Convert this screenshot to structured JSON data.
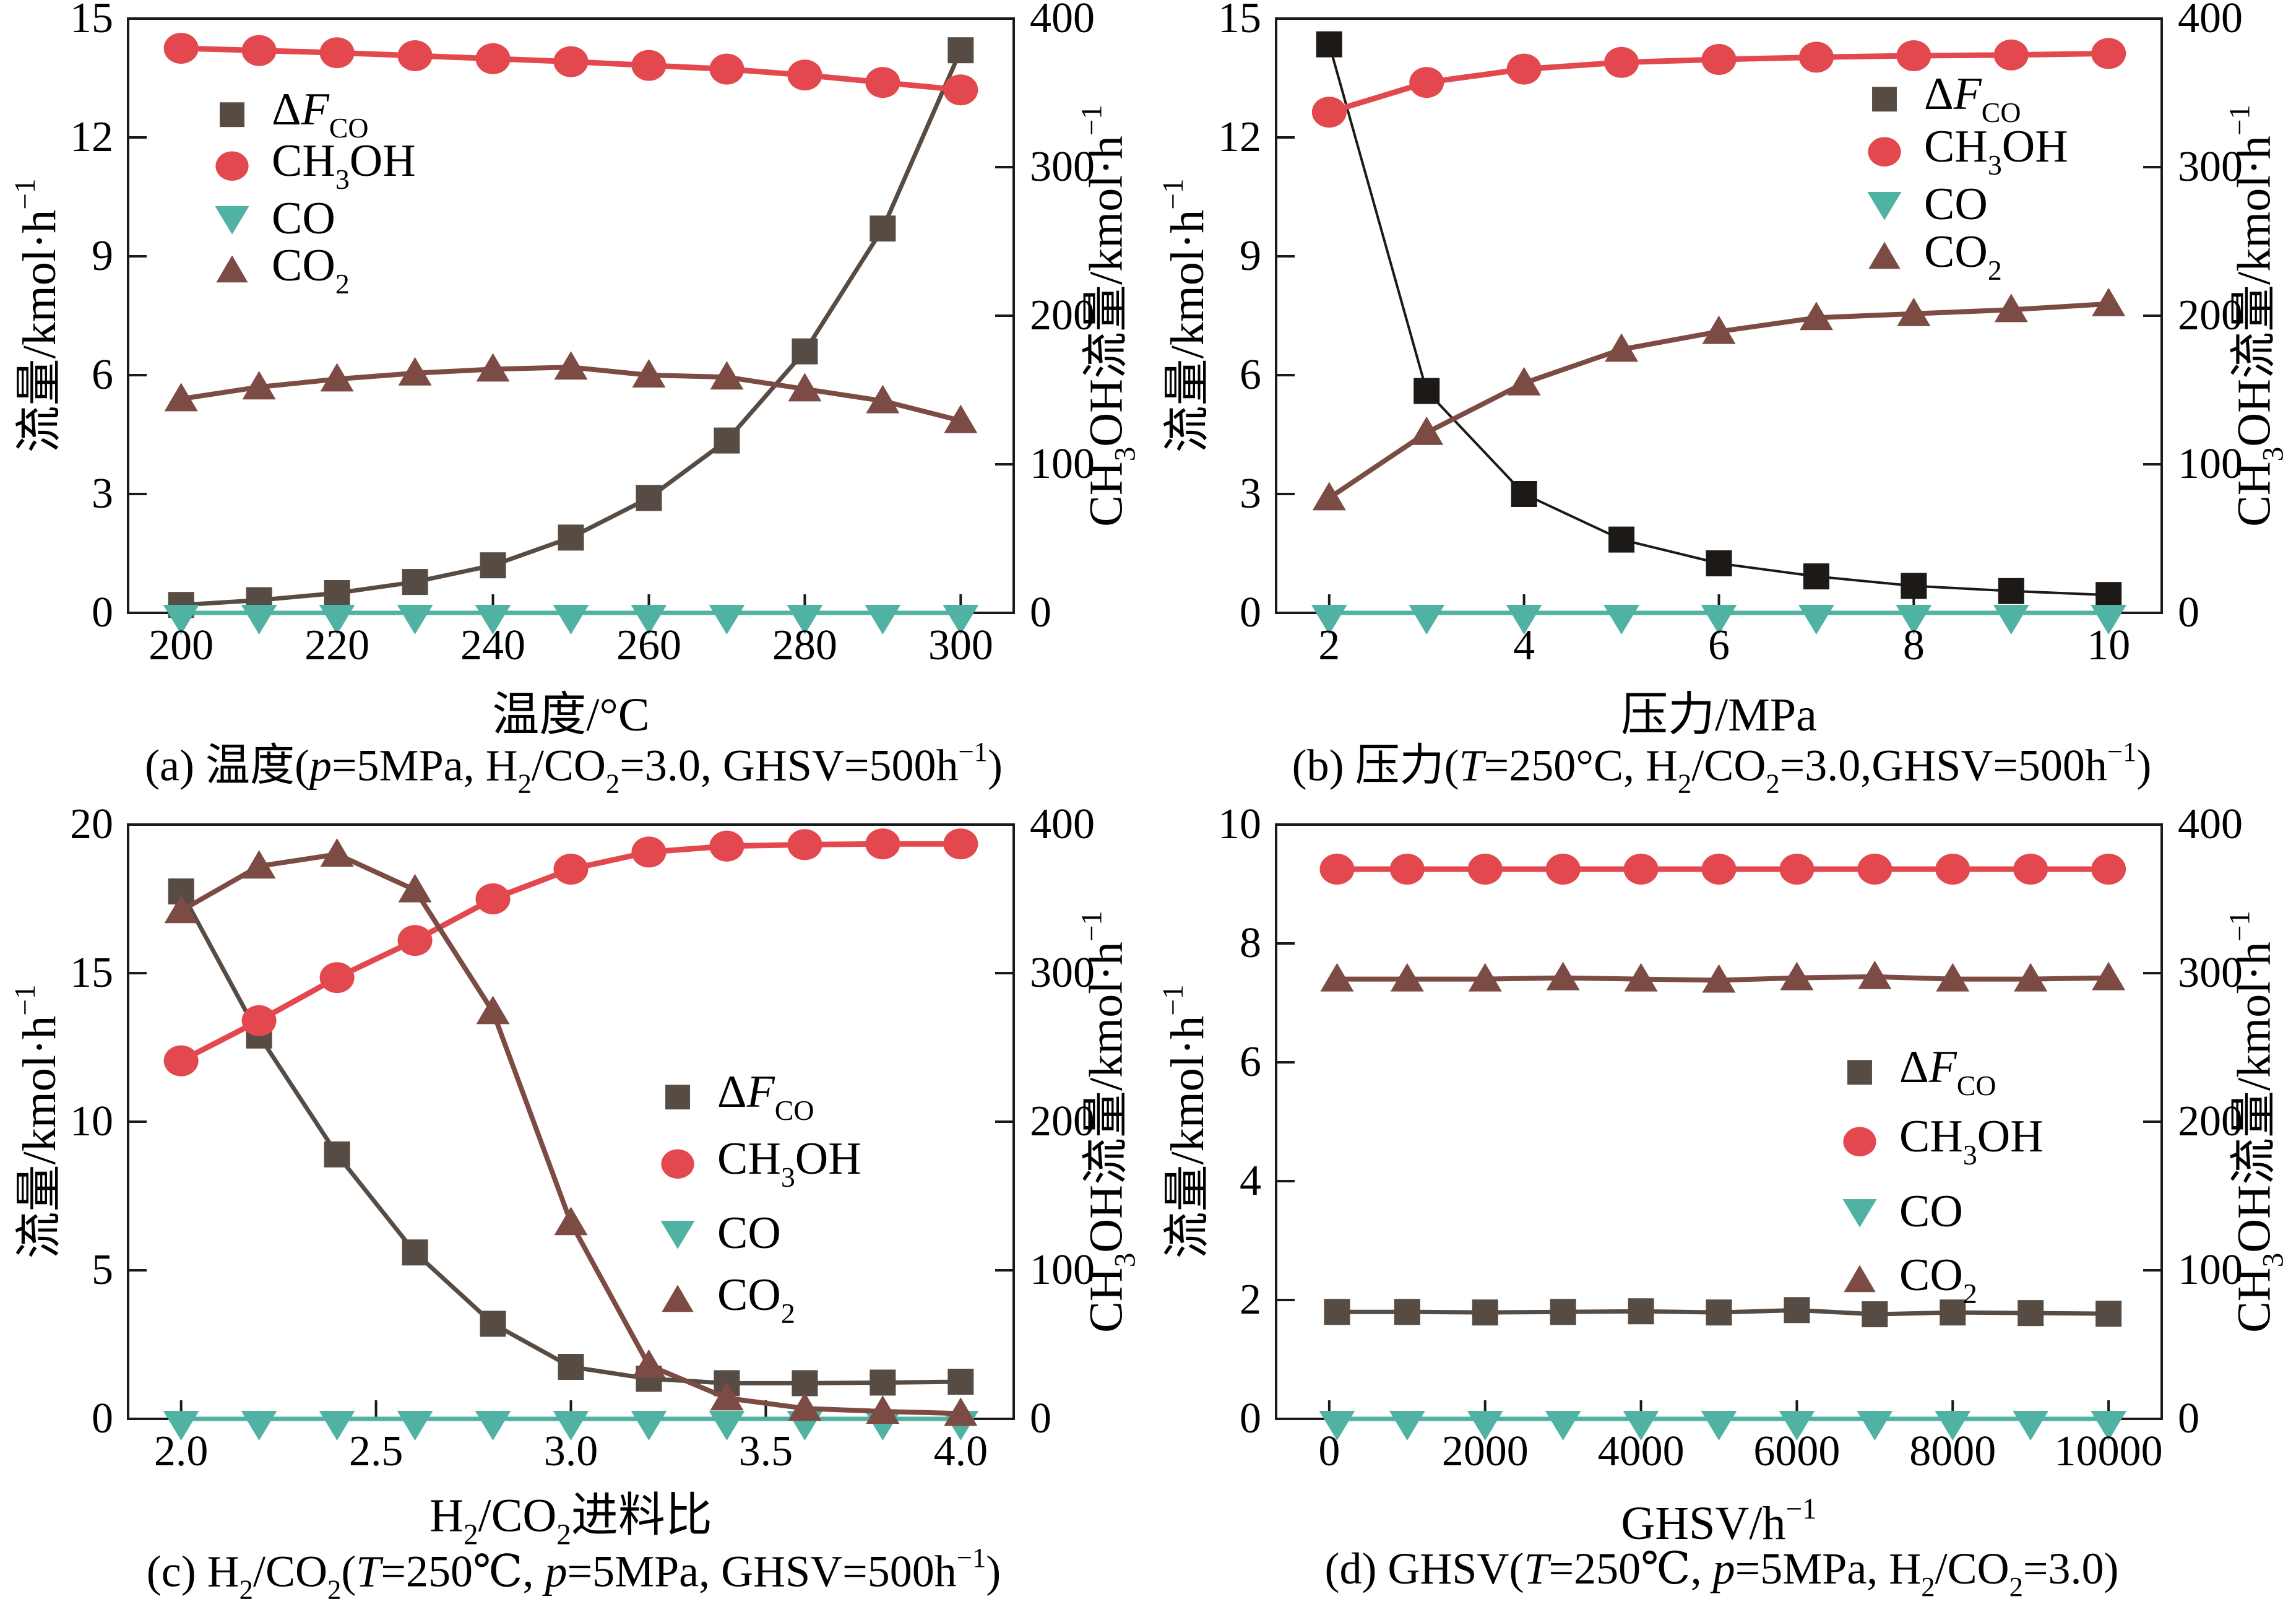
{
  "figure": {
    "background": "#ffffff",
    "axis_color": "#1a1a1a",
    "colors": {
      "dFCO": "#564c44",
      "CH3OH": "#e2484d",
      "CO": "#4fb2a3",
      "CO2": "#7c4b43"
    },
    "legend_labels": {
      "dFCO": "Δ*F*_CO_",
      "CH3OH": "CH_3_OH",
      "CO": "CO",
      "CO2": "CO_2_"
    }
  },
  "chart_data": [
    {
      "id": "a",
      "type": "line",
      "caption": "(a) 温度(*p*=5MPa, H_2_/CO_2_=3.0, GHSV=500h^−1^)",
      "xlabel": "温度/°C",
      "ylabel_left": "流量/kmol·h^−1^",
      "ylabel_right": "CH_3_OH流量/kmol·h^−1^",
      "xlim": [
        193.2,
        306.8
      ],
      "x_ticks": [
        200,
        220,
        240,
        260,
        280,
        300
      ],
      "x_tick_labels": [
        "200",
        "220",
        "240",
        "260",
        "280",
        "300"
      ],
      "ylim_left": [
        0,
        15
      ],
      "y_ticks_left": [
        0,
        3,
        6,
        9,
        12,
        15
      ],
      "ylim_right": [
        0,
        400
      ],
      "y_ticks_right": [
        0,
        100,
        200,
        300,
        400
      ],
      "x": [
        200,
        210,
        220,
        230,
        240,
        250,
        260,
        270,
        280,
        290,
        300
      ],
      "series": [
        {
          "key": "dFCO",
          "axis": "left",
          "marker": "square",
          "values": [
            0.2,
            0.32,
            0.5,
            0.78,
            1.2,
            1.9,
            2.9,
            4.35,
            6.6,
            9.7,
            14.2
          ]
        },
        {
          "key": "CH3OH",
          "axis": "right",
          "marker": "circle",
          "values": [
            380,
            378.5,
            377,
            375,
            373,
            371,
            368.5,
            366,
            362,
            357,
            352
          ]
        },
        {
          "key": "CO",
          "axis": "left",
          "marker": "triangle-down",
          "values": [
            0,
            0,
            0,
            0,
            0,
            0,
            0,
            0,
            0,
            0,
            0
          ]
        },
        {
          "key": "CO2",
          "axis": "left",
          "marker": "triangle-up",
          "values": [
            5.4,
            5.7,
            5.9,
            6.05,
            6.15,
            6.2,
            6.0,
            5.95,
            5.65,
            5.35,
            4.85
          ]
        }
      ],
      "legend_pos": {
        "x": 375,
        "ys": [
          185,
          268,
          353,
          437
        ]
      }
    },
    {
      "id": "b",
      "type": "line",
      "caption": "(b) 压力(*T*=250°C, H_2_/CO_2_=3.0,GHSV=500h^−1^)",
      "xlabel": "压力/MPa",
      "ylabel_left": "流量/kmol·h^−1^",
      "ylabel_right": "CH_3_OH流量/kmol·h^−1^",
      "xlim": [
        1.455,
        10.545
      ],
      "x_ticks": [
        2,
        4,
        6,
        8,
        10
      ],
      "x_tick_labels": [
        "2",
        "4",
        "6",
        "8",
        "10"
      ],
      "ylim_left": [
        0,
        15
      ],
      "y_ticks_left": [
        0,
        3,
        6,
        9,
        12,
        15
      ],
      "ylim_right": [
        0,
        400
      ],
      "y_ticks_right": [
        0,
        100,
        200,
        300,
        400
      ],
      "x": [
        2,
        3,
        4,
        5,
        6,
        7,
        8,
        9,
        10
      ],
      "series": [
        {
          "key": "dFCO",
          "axis": "left",
          "marker": "square",
          "values": [
            14.35,
            5.6,
            3.0,
            1.85,
            1.25,
            0.92,
            0.68,
            0.55,
            0.45
          ]
        },
        {
          "key": "CH3OH",
          "axis": "right",
          "marker": "circle",
          "values": [
            337,
            357,
            366,
            370.5,
            372.5,
            374,
            375,
            375.5,
            376.5
          ]
        },
        {
          "key": "CO",
          "axis": "left",
          "marker": "triangle-down",
          "values": [
            0,
            0,
            0,
            0,
            0,
            0,
            0,
            0,
            0
          ]
        },
        {
          "key": "CO2",
          "axis": "left",
          "marker": "triangle-up",
          "values": [
            2.9,
            4.55,
            5.8,
            6.65,
            7.1,
            7.45,
            7.55,
            7.65,
            7.8
          ]
        }
      ],
      "style": {
        "dFCO": {
          "color": "#1c1917",
          "line_width": 4
        }
      },
      "legend_pos": {
        "x": 1190,
        "ys": [
          160,
          245,
          330,
          415
        ]
      }
    },
    {
      "id": "c",
      "type": "line",
      "caption": "(c) H_2_/CO_2_(*T*=250℃, *p*=5MPa, GHSV=500h^−1^)",
      "xlabel": "H_2_/CO_2_进料比",
      "ylabel_left": "流量/kmol·h^−1^",
      "ylabel_right": "CH_3_OH流量/kmol·h^−1^",
      "xlim": [
        1.864,
        4.136
      ],
      "x_ticks": [
        2.0,
        2.5,
        3.0,
        3.5,
        4.0
      ],
      "x_tick_labels": [
        "2.0",
        "2.5",
        "3.0",
        "3.5",
        "4.0"
      ],
      "ylim_left": [
        0,
        20
      ],
      "y_ticks_left": [
        0,
        5,
        10,
        15,
        20
      ],
      "ylim_right": [
        0,
        400
      ],
      "y_ticks_right": [
        0,
        100,
        200,
        300,
        400
      ],
      "x": [
        2.0,
        2.2,
        2.4,
        2.6,
        2.8,
        3.0,
        3.2,
        3.4,
        3.6,
        3.8,
        4.0
      ],
      "series": [
        {
          "key": "dFCO",
          "axis": "left",
          "marker": "square",
          "values": [
            17.75,
            12.9,
            8.9,
            5.6,
            3.2,
            1.75,
            1.35,
            1.2,
            1.2,
            1.22,
            1.25
          ]
        },
        {
          "key": "CH3OH",
          "axis": "right",
          "marker": "circle",
          "values": [
            241,
            268,
            297,
            322,
            350,
            370,
            381.5,
            385.5,
            386.5,
            387,
            387
          ]
        },
        {
          "key": "CO",
          "axis": "left",
          "marker": "triangle-down",
          "values": [
            0,
            0,
            0,
            0,
            0,
            0,
            0,
            0,
            0,
            0,
            0
          ]
        },
        {
          "key": "CO2",
          "axis": "left",
          "marker": "triangle-up",
          "values": [
            17.1,
            18.6,
            19.0,
            17.8,
            13.7,
            6.6,
            1.8,
            0.7,
            0.35,
            0.25,
            0.18
          ]
        }
      ],
      "legend_pos": {
        "x": 1095,
        "ys": [
          470,
          578,
          690,
          798
        ]
      }
    },
    {
      "id": "d",
      "type": "line",
      "caption": "(d) GHSV(*T*=250℃, *p*=5MPa, H_2_/CO_2_=3.0)",
      "xlabel": "GHSV/h^−1^",
      "ylabel_left": "流量/kmol·h^−1^",
      "ylabel_right": "CH_3_OH流量/kmol·h^−1^",
      "xlim": [
        -682,
        10682
      ],
      "x_ticks": [
        0,
        2000,
        4000,
        6000,
        8000,
        10000
      ],
      "x_tick_labels": [
        "0",
        "2000",
        "4000",
        "6000",
        "8000",
        "10000"
      ],
      "ylim_left": [
        0,
        10
      ],
      "y_ticks_left": [
        0,
        2,
        4,
        6,
        8,
        10
      ],
      "ylim_right": [
        0,
        400
      ],
      "y_ticks_right": [
        0,
        100,
        200,
        300,
        400
      ],
      "x": [
        100,
        1000,
        2000,
        3000,
        4000,
        5000,
        6000,
        7000,
        8000,
        9000,
        10000
      ],
      "series": [
        {
          "key": "dFCO",
          "axis": "left",
          "marker": "square",
          "values": [
            1.8,
            1.8,
            1.79,
            1.8,
            1.81,
            1.79,
            1.83,
            1.76,
            1.79,
            1.78,
            1.77
          ]
        },
        {
          "key": "CH3OH",
          "axis": "right",
          "marker": "circle",
          "values": [
            370,
            370,
            370,
            370,
            370,
            370,
            370,
            370,
            370,
            370,
            370
          ]
        },
        {
          "key": "CO",
          "axis": "left",
          "marker": "triangle-down",
          "values": [
            0,
            0,
            0,
            0,
            0,
            0,
            0,
            0,
            0,
            0,
            0
          ]
        },
        {
          "key": "CO2",
          "axis": "left",
          "marker": "triangle-up",
          "values": [
            7.4,
            7.4,
            7.4,
            7.42,
            7.4,
            7.38,
            7.42,
            7.44,
            7.4,
            7.4,
            7.42
          ]
        }
      ],
      "legend_pos": {
        "x": 1150,
        "ys": [
          430,
          542,
          655,
          766
        ]
      }
    }
  ]
}
